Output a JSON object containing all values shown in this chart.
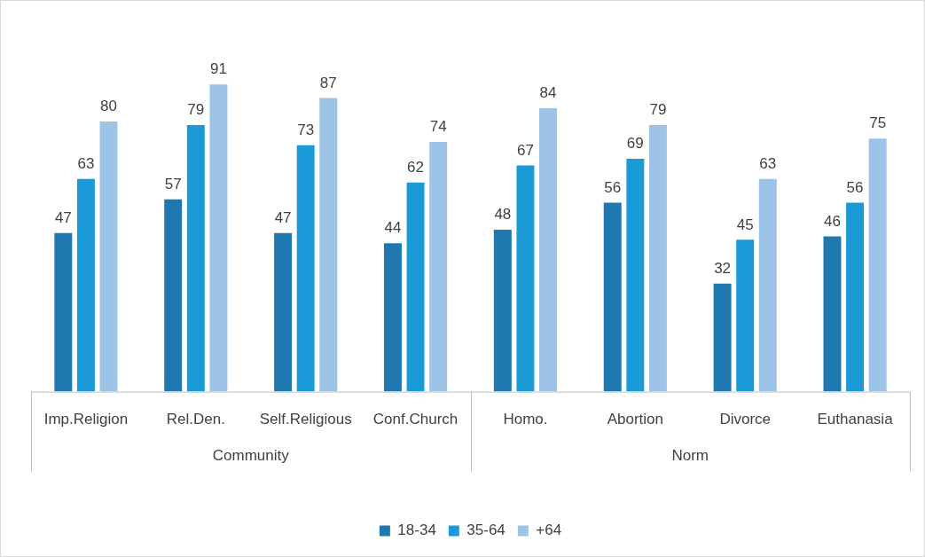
{
  "chart_data": {
    "type": "bar",
    "categories": [
      "Imp.Religion",
      "Rel.Den.",
      "Self.Religious",
      "Conf.Church",
      "Homo.",
      "Abortion",
      "Divorce",
      "Euthanasia"
    ],
    "series": [
      {
        "name": "18-34",
        "color": "#1f78b0",
        "values": [
          47,
          57,
          47,
          44,
          48,
          56,
          32,
          46
        ]
      },
      {
        "name": "35-64",
        "color": "#1a9bd8",
        "values": [
          63,
          79,
          73,
          62,
          67,
          69,
          45,
          56
        ]
      },
      {
        "name": "+64",
        "color": "#9dc3e6",
        "values": [
          80,
          91,
          87,
          74,
          84,
          79,
          63,
          75
        ]
      }
    ],
    "annotations": [
      "Community",
      "Norm"
    ],
    "data_labels": true,
    "grid": false,
    "legend": "bottom",
    "tick_labels": "x"
  }
}
